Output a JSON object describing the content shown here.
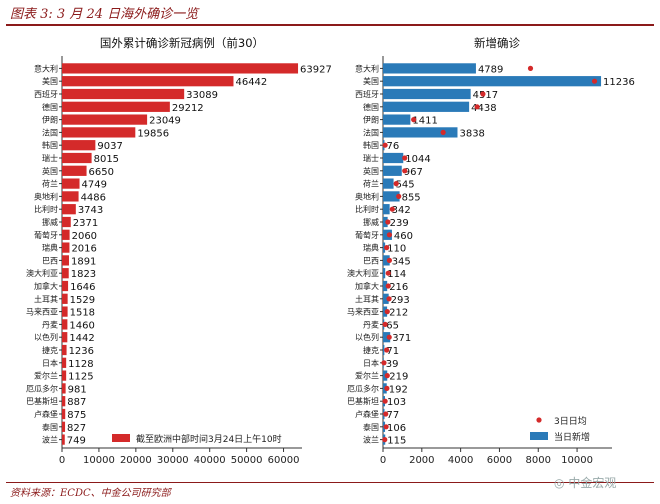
{
  "header": {
    "caption": "图表 3: 3 月 24 日海外确诊一览"
  },
  "footer": {
    "source": "资料来源：ECDC、中金公司研究部"
  },
  "watermark": {
    "text": "中金宏观"
  },
  "colors": {
    "left_bar": "#d42a2a",
    "right_bar": "#2a7ab8",
    "dot": "#d42a2a",
    "accent": "#8b1a1a"
  },
  "chart_data": [
    {
      "type": "bar",
      "orientation": "horizontal",
      "title": "国外累计确诊新冠病例（前30）",
      "categories": [
        "意大利",
        "美国",
        "西班牙",
        "德国",
        "伊朗",
        "法国",
        "韩国",
        "瑞士",
        "英国",
        "荷兰",
        "奥地利",
        "比利时",
        "挪威",
        "葡萄牙",
        "瑞典",
        "巴西",
        "澳大利亚",
        "加拿大",
        "土耳其",
        "马来西亚",
        "丹麦",
        "以色列",
        "捷克",
        "日本",
        "爱尔兰",
        "厄瓜多尔",
        "巴基斯坦",
        "卢森堡",
        "泰国",
        "波兰"
      ],
      "series": [
        {
          "name": "截至欧洲中部时间3月24日上午10时",
          "values": [
            63927,
            46442,
            33089,
            29212,
            23049,
            19856,
            9037,
            8015,
            6650,
            4749,
            4486,
            3743,
            2371,
            2060,
            2016,
            1891,
            1823,
            1646,
            1529,
            1518,
            1460,
            1442,
            1236,
            1128,
            1125,
            981,
            887,
            875,
            827,
            749
          ]
        }
      ],
      "xlim": [
        0,
        65000
      ],
      "xticks": [
        0,
        10000,
        20000,
        30000,
        40000,
        50000,
        60000
      ],
      "legend_position": "bottom-right"
    },
    {
      "type": "bar",
      "orientation": "horizontal",
      "title": "新增确诊",
      "categories": [
        "意大利",
        "美国",
        "西班牙",
        "德国",
        "伊朗",
        "法国",
        "韩国",
        "瑞士",
        "英国",
        "荷兰",
        "奥地利",
        "比利时",
        "挪威",
        "葡萄牙",
        "瑞典",
        "巴西",
        "澳大利亚",
        "加拿大",
        "土耳其",
        "马来西亚",
        "丹麦",
        "以色列",
        "捷克",
        "日本",
        "爱尔兰",
        "厄瓜多尔",
        "巴基斯坦",
        "卢森堡",
        "泰国",
        "波兰"
      ],
      "series": [
        {
          "name": "当日新增",
          "kind": "bar",
          "values": [
            4789,
            11236,
            4517,
            4438,
            1411,
            3838,
            76,
            1044,
            967,
            545,
            855,
            342,
            239,
            460,
            110,
            345,
            114,
            216,
            293,
            212,
            65,
            371,
            71,
            39,
            219,
            192,
            103,
            77,
            106,
            115
          ]
        },
        {
          "name": "3日日均",
          "kind": "scatter",
          "values": [
            7600,
            10900,
            5150,
            4850,
            1580,
            3100,
            110,
            1120,
            1120,
            680,
            810,
            480,
            250,
            330,
            190,
            330,
            270,
            270,
            310,
            220,
            110,
            320,
            190,
            50,
            220,
            200,
            110,
            140,
            160,
            90
          ]
        }
      ],
      "xlim": [
        0,
        11800
      ],
      "xticks": [
        0,
        2000,
        4000,
        6000,
        8000,
        10000
      ],
      "legend_position": "bottom-right"
    }
  ]
}
